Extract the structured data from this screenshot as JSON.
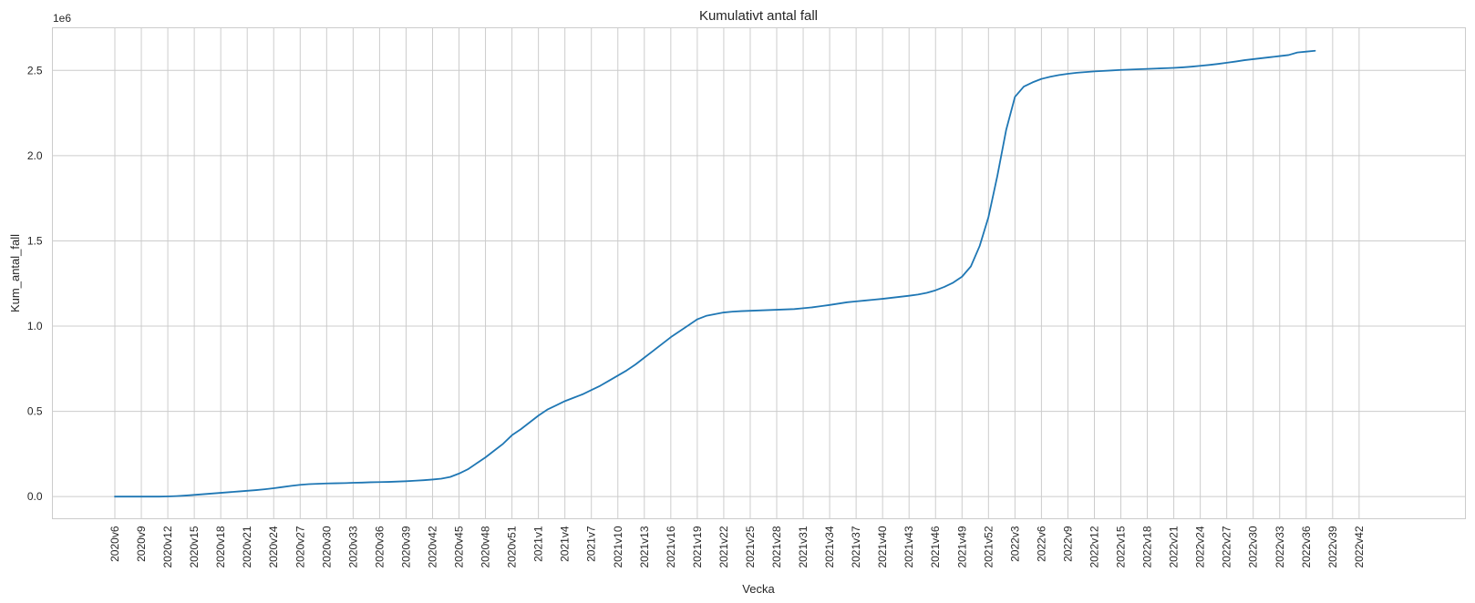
{
  "chart_data": {
    "type": "line",
    "title": "Kumulativt antal fall",
    "xlabel": "Vecka",
    "ylabel": "Kum_antal_fall",
    "y_offset_label": "1e6",
    "ylim": [
      -0.13,
      2.75
    ],
    "y_ticks": [
      0.0,
      0.5,
      1.0,
      1.5,
      2.0,
      2.5
    ],
    "y_tick_labels": [
      "0.0",
      "0.5",
      "1.0",
      "1.5",
      "2.0",
      "2.5"
    ],
    "x_tick_labels": [
      "2020v6",
      "2020v9",
      "2020v12",
      "2020v15",
      "2020v18",
      "2020v21",
      "2020v24",
      "2020v27",
      "2020v30",
      "2020v33",
      "2020v36",
      "2020v39",
      "2020v42",
      "2020v45",
      "2020v48",
      "2020v51",
      "2021v1",
      "2021v4",
      "2021v7",
      "2021v10",
      "2021v13",
      "2021v16",
      "2021v19",
      "2021v22",
      "2021v25",
      "2021v28",
      "2021v31",
      "2021v34",
      "2021v37",
      "2021v40",
      "2021v43",
      "2021v46",
      "2021v49",
      "2021v52",
      "2022v3",
      "2022v6",
      "2022v9",
      "2022v12",
      "2022v15",
      "2022v18",
      "2022v21",
      "2022v24",
      "2022v27",
      "2022v30",
      "2022v33",
      "2022v36",
      "2022v39",
      "2022v42"
    ],
    "grid": true,
    "series": [
      {
        "color": "#1f77b4",
        "values": [
          0.0,
          0.0,
          0.0,
          0.0,
          0.0,
          0.0,
          0.001,
          0.003,
          0.006,
          0.01,
          0.014,
          0.018,
          0.022,
          0.026,
          0.03,
          0.034,
          0.038,
          0.043,
          0.049,
          0.056,
          0.063,
          0.069,
          0.073,
          0.075,
          0.077,
          0.078,
          0.079,
          0.081,
          0.082,
          0.084,
          0.085,
          0.086,
          0.088,
          0.09,
          0.093,
          0.096,
          0.1,
          0.105,
          0.115,
          0.135,
          0.16,
          0.195,
          0.23,
          0.27,
          0.31,
          0.36,
          0.395,
          0.435,
          0.475,
          0.51,
          0.535,
          0.56,
          0.58,
          0.6,
          0.625,
          0.65,
          0.68,
          0.71,
          0.74,
          0.775,
          0.815,
          0.855,
          0.895,
          0.935,
          0.97,
          1.005,
          1.04,
          1.06,
          1.07,
          1.08,
          1.085,
          1.088,
          1.09,
          1.092,
          1.094,
          1.096,
          1.098,
          1.1,
          1.105,
          1.11,
          1.117,
          1.124,
          1.132,
          1.14,
          1.145,
          1.15,
          1.155,
          1.16,
          1.166,
          1.172,
          1.178,
          1.185,
          1.195,
          1.21,
          1.23,
          1.255,
          1.29,
          1.35,
          1.47,
          1.64,
          1.88,
          2.15,
          2.345,
          2.405,
          2.43,
          2.45,
          2.463,
          2.473,
          2.48,
          2.486,
          2.49,
          2.494,
          2.497,
          2.5,
          2.503,
          2.505,
          2.507,
          2.509,
          2.511,
          2.513,
          2.515,
          2.518,
          2.522,
          2.527,
          2.532,
          2.538,
          2.545,
          2.552,
          2.56,
          2.566,
          2.572,
          2.578,
          2.584,
          2.59,
          2.605,
          2.61,
          2.615
        ]
      }
    ]
  }
}
